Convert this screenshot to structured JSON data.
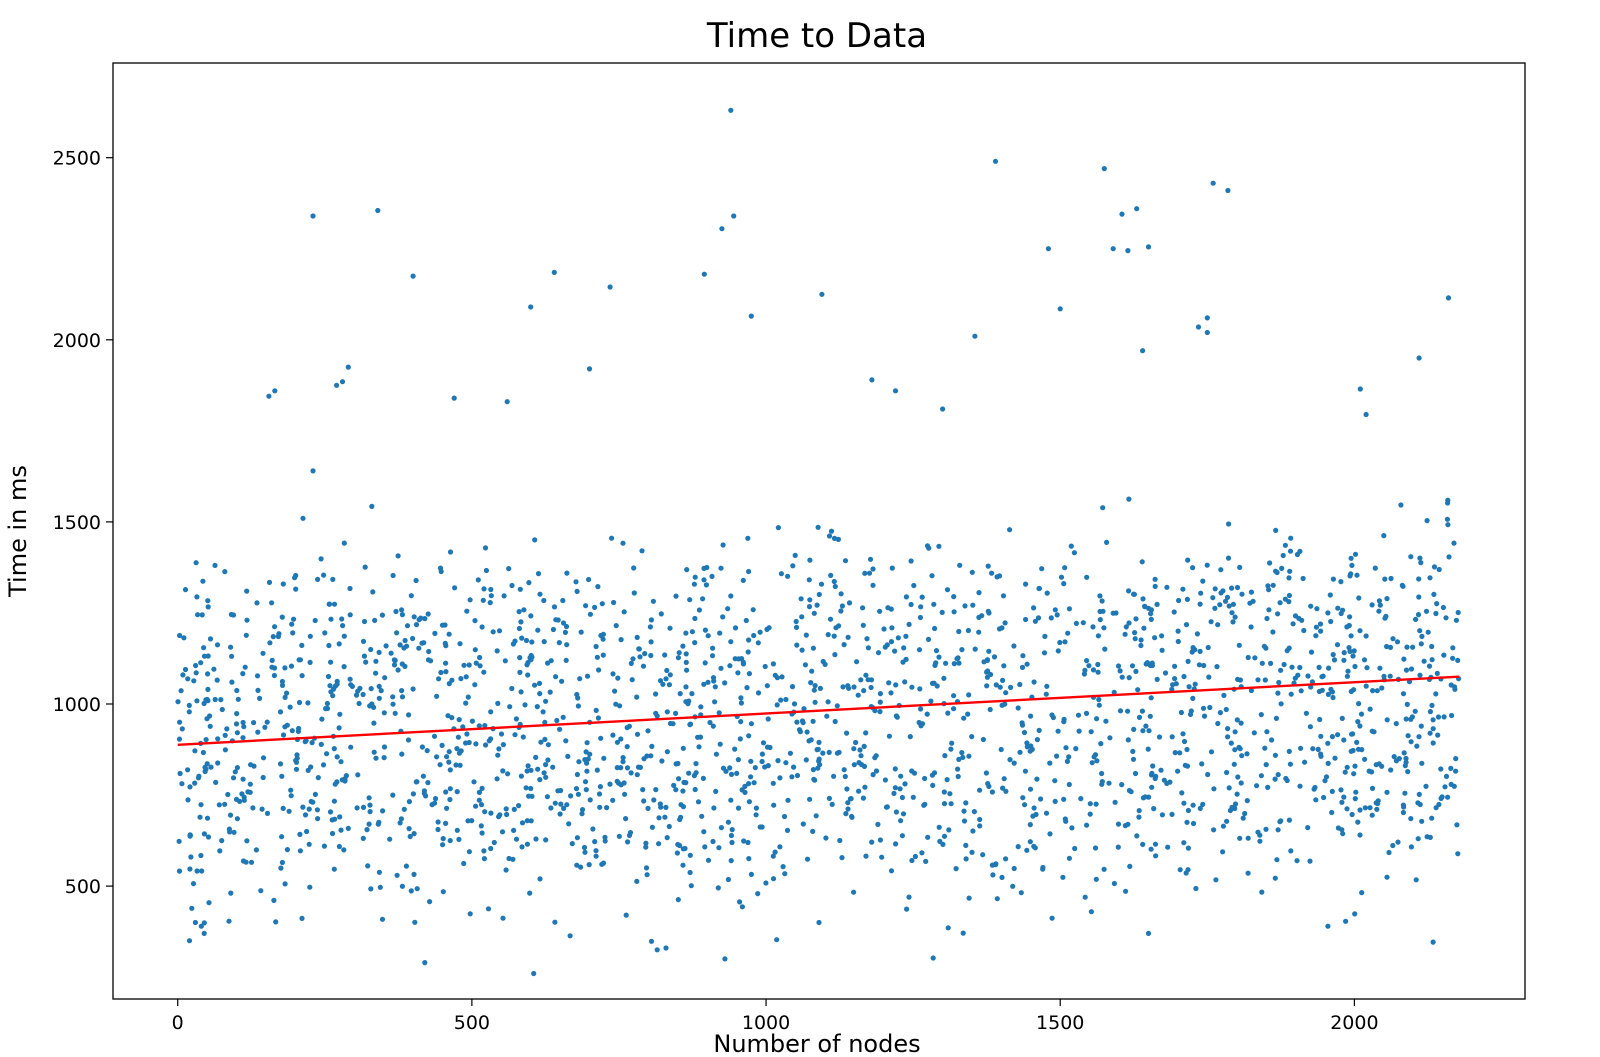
{
  "chart_data": {
    "type": "scatter",
    "title": "Time to Data",
    "xlabel": "Number of nodes",
    "ylabel": "Time in ms",
    "xlim": [
      -110,
      2290
    ],
    "ylim": [
      190,
      2760
    ],
    "xticks": [
      0,
      500,
      1000,
      1500,
      2000
    ],
    "yticks": [
      500,
      1000,
      1500,
      2000,
      2500
    ],
    "grid": false,
    "legend": "none",
    "n_points_approx": 2180,
    "x_range": [
      0,
      2178
    ],
    "y_range": [
      260,
      2630
    ],
    "series": [
      {
        "type": "scatter",
        "color": "#1f77b4",
        "x": [
          940,
          1390,
          1575,
          1760,
          1785,
          230,
          340,
          1605,
          1630,
          1650,
          1590,
          1615,
          925,
          945,
          640,
          400,
          735,
          1095,
          895,
          2160,
          1750,
          1735,
          1750,
          1500,
          1480,
          600,
          975,
          1640,
          2110,
          1355,
          700,
          155,
          165,
          280,
          270,
          290,
          230,
          470,
          560,
          1220,
          1300,
          1180,
          420,
          605,
          830,
          815,
          1955,
          1650,
          20,
          30,
          40,
          45,
          930,
          1090,
          2020,
          2010
        ],
        "y": [
          2630,
          2490,
          2470,
          2430,
          2410,
          2340,
          2355,
          2345,
          2360,
          2255,
          2250,
          2245,
          2305,
          2340,
          2185,
          2175,
          2145,
          2125,
          2180,
          2115,
          2060,
          2035,
          2020,
          2085,
          2250,
          2090,
          2065,
          1970,
          1950,
          2010,
          1920,
          1845,
          1860,
          1885,
          1875,
          1925,
          1640,
          1840,
          1830,
          1860,
          1810,
          1890,
          290,
          260,
          330,
          325,
          390,
          370,
          350,
          400,
          390,
          370,
          300,
          400,
          1795,
          1865
        ]
      },
      {
        "type": "line",
        "name": "",
        "color": "#ff0000",
        "x": [
          0,
          2178
        ],
        "y": [
          888,
          1075
        ]
      }
    ]
  }
}
